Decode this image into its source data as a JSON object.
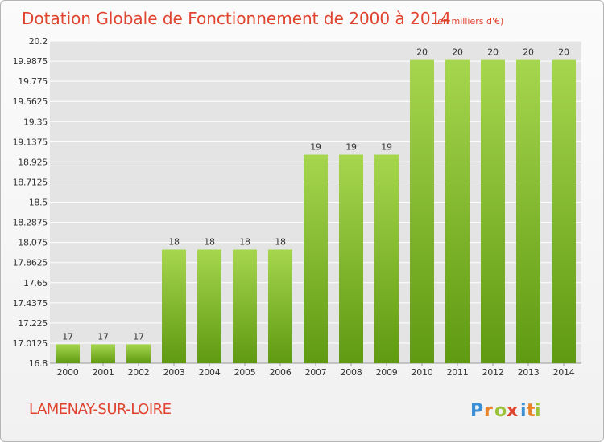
{
  "chart_data": {
    "type": "bar",
    "title": "Dotation Globale de Fonctionnement de 2000 à 2014",
    "subtitle": "(en milliers d'€)",
    "categories": [
      "2000",
      "2001",
      "2002",
      "2003",
      "2004",
      "2005",
      "2006",
      "2007",
      "2008",
      "2009",
      "2010",
      "2011",
      "2012",
      "2013",
      "2014"
    ],
    "values": [
      17,
      17,
      17,
      18,
      18,
      18,
      18,
      19,
      19,
      19,
      20,
      20,
      20,
      20,
      20
    ],
    "data_labels": [
      "17",
      "17",
      "17",
      "18",
      "18",
      "18",
      "18",
      "19",
      "19",
      "19",
      "20",
      "20",
      "20",
      "20",
      "20"
    ],
    "ylim": [
      16.8,
      20.2
    ],
    "yticks": [
      "20.2",
      "19.9875",
      "19.775",
      "19.5625",
      "19.35",
      "19.1375",
      "18.925",
      "18.7125",
      "18.5",
      "18.2875",
      "18.075",
      "17.8625",
      "17.65",
      "17.4375",
      "17.225",
      "17.0125",
      "16.8"
    ],
    "grid": true,
    "legend": "none",
    "colors": {
      "bar_light": "#a6d64e",
      "bar_dark": "#5f9a12",
      "title": "#e0432e",
      "grid": "#ffffff",
      "plot_bg": "#e4e4e4"
    }
  },
  "commune": "LAMENAY-SUR-LOIRE",
  "logo": {
    "text": "Proxiti",
    "letter_colors": [
      "#3b8fd6",
      "#e8832a",
      "#9bc33a",
      "#e0432e",
      "#3b8fd6",
      "#e8832a",
      "#9bc33a"
    ]
  }
}
